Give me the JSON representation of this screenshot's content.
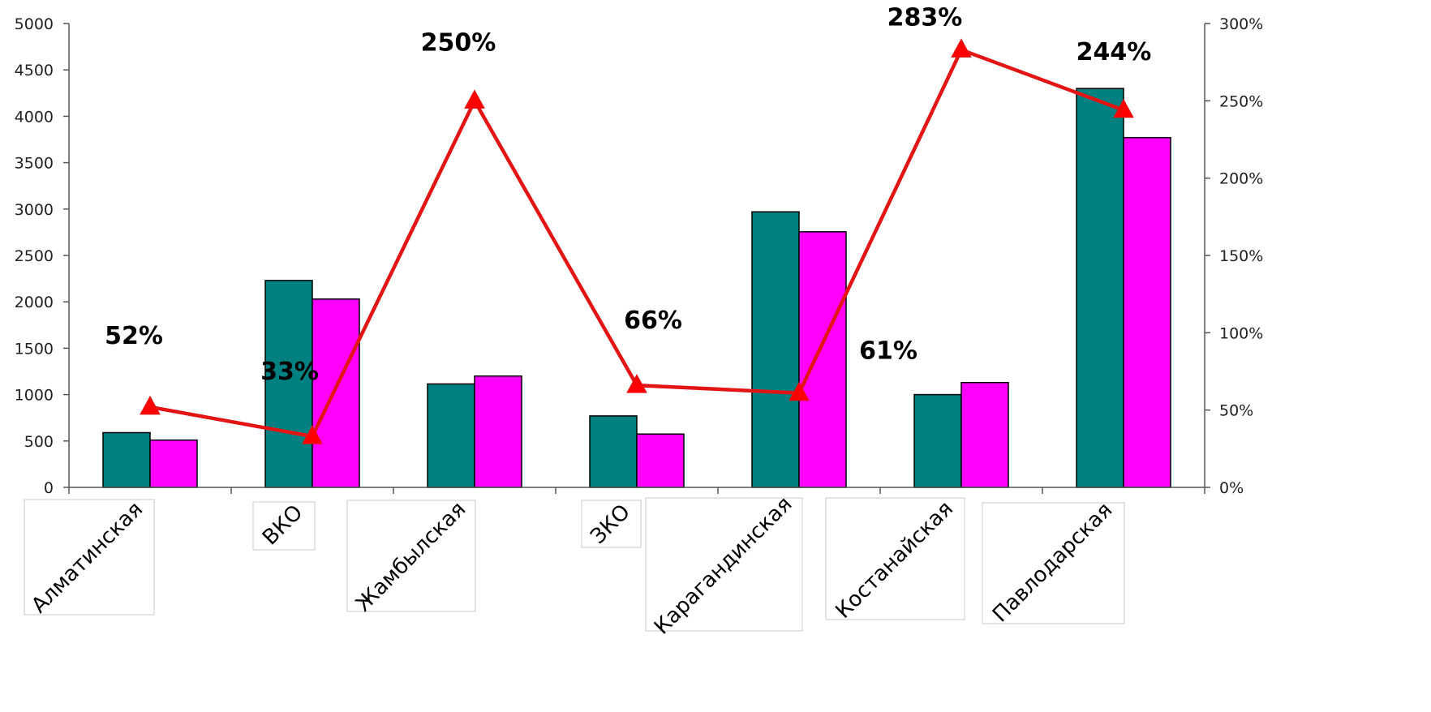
{
  "chart_data": {
    "type": "bar",
    "categories": [
      "Алматинская",
      "ВКО",
      "Жамбылская",
      "ЗКО",
      "Карагандинская",
      "Костанайская",
      "Павлодарская"
    ],
    "series": [
      {
        "type": "bar",
        "axis": "left",
        "values": [
          590,
          2230,
          1115,
          770,
          2970,
          1000,
          4300
        ]
      },
      {
        "type": "bar",
        "axis": "left",
        "values": [
          510,
          2030,
          1200,
          575,
          2755,
          1130,
          3770
        ]
      },
      {
        "type": "line",
        "axis": "right",
        "values": [
          52,
          33,
          250,
          66,
          61,
          283,
          244
        ]
      }
    ],
    "data_labels": [
      "52%",
      "33%",
      "250%",
      "66%",
      "61%",
      "283%",
      "244%"
    ],
    "left_axis": {
      "min": 0,
      "max": 5000,
      "step": 500,
      "ticks": [
        "0",
        "500",
        "1000",
        "1500",
        "2000",
        "2500",
        "3000",
        "3500",
        "4000",
        "4500",
        "5000"
      ]
    },
    "right_axis": {
      "min": 0,
      "max": 300,
      "step": 50,
      "ticks": [
        "0%",
        "50%",
        "100%",
        "150%",
        "200%",
        "250%",
        "300%"
      ]
    },
    "grid": false,
    "legend": "none",
    "colors": {
      "bar_series_1": "#008080",
      "bar_series_2": "#ff00ff",
      "line": "#e31414",
      "marker": "#ff0000",
      "axis": "#555555",
      "bar_outline": "#000000",
      "label_box_border": "#c8c8c8"
    }
  }
}
